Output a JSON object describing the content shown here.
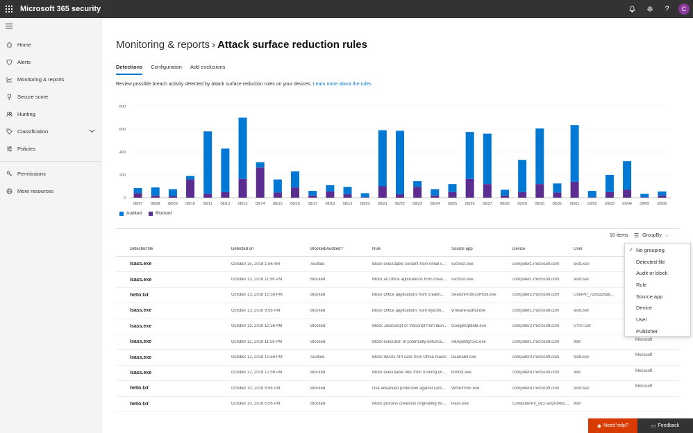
{
  "app": {
    "title": "Microsoft 365 security",
    "avatar_initial": "C"
  },
  "sidebar": {
    "items": [
      {
        "label": "Home",
        "icon": "home-icon"
      },
      {
        "label": "Alerts",
        "icon": "shield-icon"
      },
      {
        "label": "Monitoring & reports",
        "icon": "chart-icon"
      },
      {
        "label": "Secure score",
        "icon": "trophy-icon"
      },
      {
        "label": "Hunting",
        "icon": "people-icon"
      },
      {
        "label": "Classification",
        "icon": "tag-icon"
      },
      {
        "label": "Policies",
        "icon": "sliders-icon"
      }
    ],
    "bottom_items": [
      {
        "label": "Permissions",
        "icon": "key-icon"
      },
      {
        "label": "More resources",
        "icon": "globe-icon"
      }
    ]
  },
  "page": {
    "breadcrumb_parent": "Monitoring & reports",
    "breadcrumb_current": "Attack surface reduction rules",
    "tabs": [
      "Detections",
      "Configuration",
      "Add exclusions"
    ],
    "description": "Review possible breach activity detected by attack surface reduction rules on your devices.",
    "learn_more": "Learn more about the rules",
    "item_count": "10 items",
    "groupby_label": "GroupBy"
  },
  "colors": {
    "audited": "#0078d4",
    "blocked": "#5c2d91",
    "accent": "#0078d4",
    "need_help": "#d83b01"
  },
  "chart_data": {
    "type": "bar",
    "stacked": true,
    "categories": [
      "08/07",
      "08/08",
      "08/09",
      "08/10",
      "08/11",
      "08/12",
      "08/13",
      "08/14",
      "08/15",
      "08/16",
      "08/17",
      "08/18",
      "08/19",
      "08/20",
      "08/21",
      "08/22",
      "08/23",
      "08/24",
      "08/25",
      "08/26",
      "08/27",
      "08/28",
      "08/29",
      "08/30",
      "08/31",
      "09/01",
      "09/02",
      "09/03",
      "09/04",
      "09/05",
      "09/06"
    ],
    "series": [
      {
        "name": "Blocked",
        "values": [
          40,
          20,
          15,
          160,
          35,
          50,
          165,
          265,
          45,
          90,
          20,
          55,
          30,
          5,
          100,
          30,
          95,
          20,
          50,
          165,
          120,
          20,
          50,
          120,
          45,
          140,
          5,
          50,
          70,
          5,
          20
        ]
      },
      {
        "name": "Audited",
        "values": [
          45,
          70,
          60,
          30,
          545,
          380,
          535,
          45,
          115,
          140,
          40,
          55,
          65,
          35,
          490,
          555,
          50,
          55,
          70,
          410,
          440,
          50,
          280,
          485,
          80,
          495,
          55,
          150,
          250,
          30,
          35
        ]
      }
    ],
    "ylim": [
      0,
      800
    ],
    "yticks": [
      0,
      200,
      400,
      600,
      800
    ],
    "legend": [
      "Audited",
      "Blocked"
    ],
    "legend_position": "bottom-left",
    "grid": true
  },
  "table": {
    "columns": [
      "Detected file",
      "Detected on",
      "Blocked/Audited?",
      "Rule",
      "Source app",
      "Device",
      "User"
    ],
    "rows": [
      [
        "lsass.exe",
        "October 15, 2018 1:56 AM",
        "Audited",
        "Block executable content from email c...",
        "svchost.exe",
        "computer1.microsoft.com",
        "testUser"
      ],
      [
        "lsass.exe",
        "October 13, 2018 11:56 PM",
        "Blocked",
        "Block all Office applications from creat...",
        "svchost.exe",
        "computer1.microsoft.com",
        "testUser"
      ],
      [
        "hello.txt",
        "October 13, 2018 10:56 PM",
        "Blocked",
        "Block Office applications from creatin...",
        "SearchProtocolHost.exe",
        "computer2.microsoft.com",
        "UserPII_72dcd26a8..."
      ],
      [
        "lsass.exe",
        "October 13, 2018 9:56 PM",
        "Blocked",
        "Block Office applications from injectin...",
        "vmware-authd.exe",
        "computer1.microsoft.com",
        "testUser"
      ],
      [
        "lsass.exe",
        "October 13, 2018 12:56 AM",
        "Blocked",
        "Block JavaScript or VBScript from laun...",
        "GoogleUpdate.exe",
        "computer2.microsoft.com",
        "SYSTEM"
      ],
      [
        "lsass.exe",
        "October 12, 2018 11:56 PM",
        "Blocked",
        "Block execution of potentially obfusca...",
        "AdAppMgrSvc.exe",
        "computer1.microsoft.com",
        "999"
      ],
      [
        "lsass.exe",
        "October 12, 2018 10:56 PM",
        "Audited",
        "Block Win32 API calls from Office macro",
        "lacuna64.exe",
        "computer3.microsoft.com",
        "testUser"
      ],
      [
        "lsass.exe",
        "October 12, 2018 12:56 AM",
        "Blocked",
        "Block executable files from running un...",
        "lmhost.exe",
        "computer4.microsoft.com",
        "999"
      ],
      [
        "hello.txt",
        "October 10, 2018 8:56 PM",
        "Blocked",
        "Use advanced protection against rans...",
        "WmiPrvSE.exe",
        "computer4.microsoft.com",
        "testUser"
      ],
      [
        "hello.txt",
        "October 10, 2018 6:56 PM",
        "Blocked",
        "Block process creations originating fro...",
        "lsass.exe",
        "ComputerPII_ce37ad2084cc...",
        "999"
      ]
    ],
    "extra_column_values": [
      "Microsoft",
      "Microsoft",
      "Microsoft",
      "Microsoft"
    ]
  },
  "groupby_menu": {
    "selected": "No grouping",
    "options": [
      "No grouping",
      "Detected file",
      "Audit or block",
      "Rule",
      "Source app",
      "Device",
      "User",
      "Publisher"
    ]
  },
  "footer": {
    "need_help": "Need help?",
    "feedback": "Feedback"
  }
}
